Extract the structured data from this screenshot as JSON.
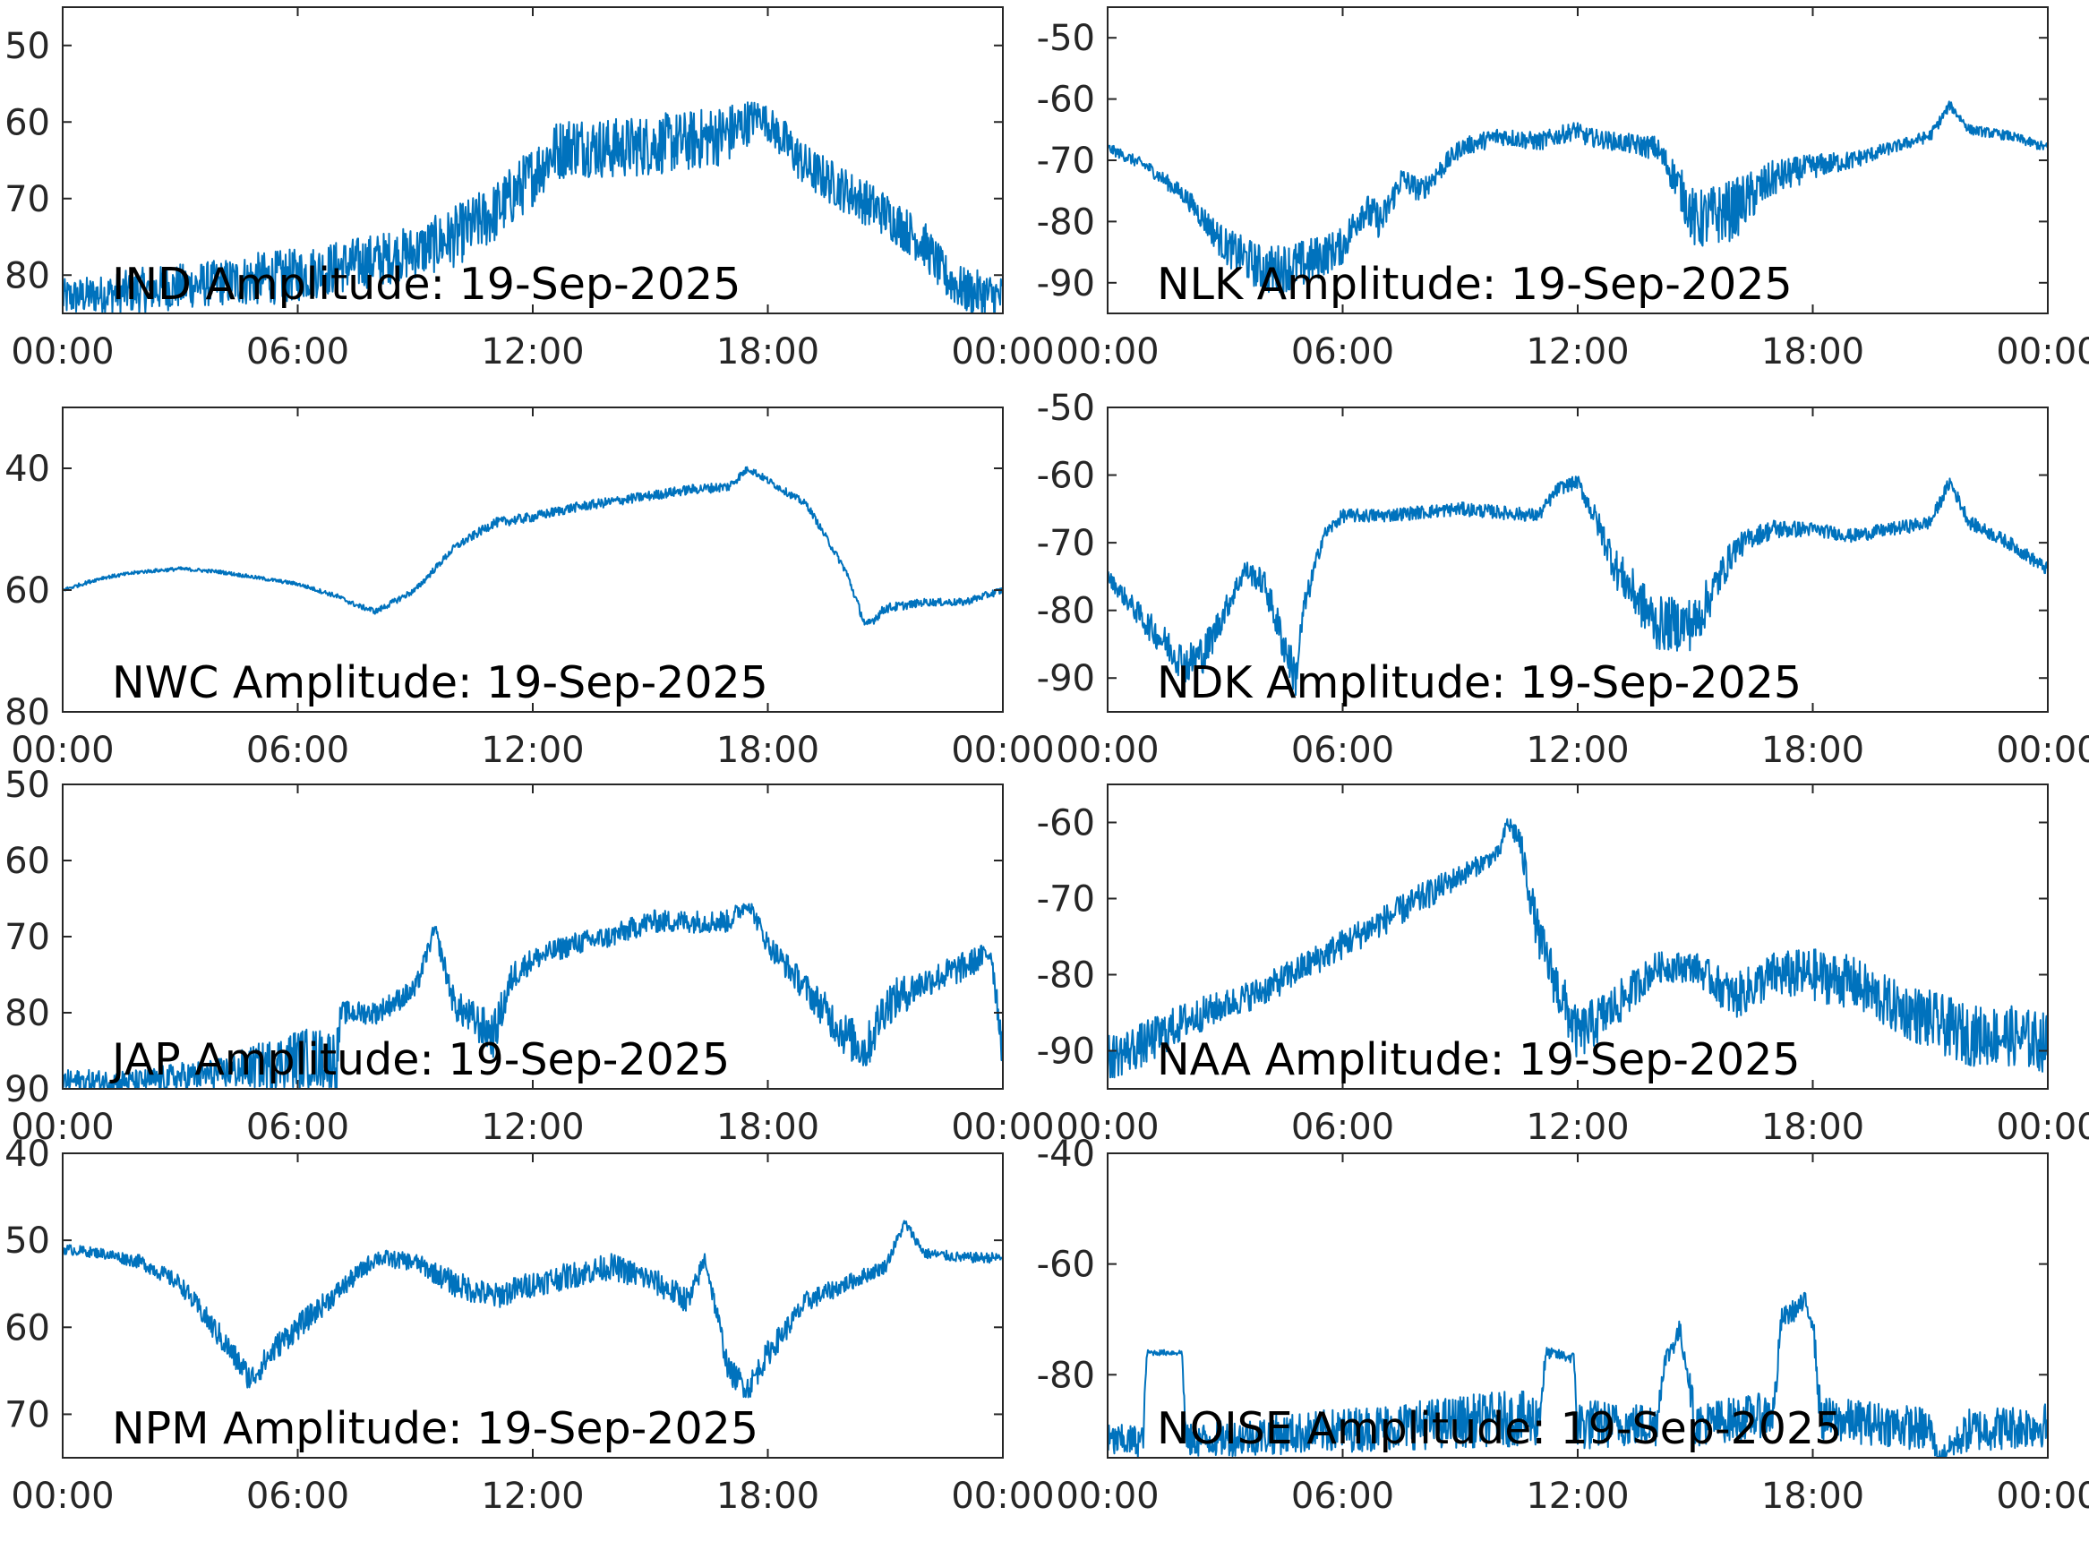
{
  "figure": {
    "line_color": "#0072BD",
    "axis_color": "#262626",
    "background": "#ffffff"
  },
  "chart_data": [
    {
      "type": "line",
      "title": "IND Amplitude: 19-Sep-2025",
      "xlabel": "",
      "ylabel": "",
      "grid": false,
      "xlim": [
        0,
        24
      ],
      "ylim": [
        -85,
        -45
      ],
      "y_reversed_visual": false,
      "xticks": [
        0,
        6,
        12,
        18,
        24
      ],
      "xtick_labels": [
        "00:00",
        "06:00",
        "12:00",
        "18:00",
        "00:00"
      ],
      "yticks": [
        -50,
        -60,
        -70,
        -80
      ],
      "ytick_labels": [
        "50",
        "60",
        "70",
        "80"
      ],
      "series": [
        {
          "x": [
            0,
            1,
            2,
            3,
            4,
            5,
            6,
            7,
            8,
            9,
            10,
            11,
            12,
            12.5,
            13,
            14,
            15,
            16,
            17,
            17.5,
            17.8,
            18.5,
            19,
            20,
            21,
            22,
            22.5,
            23,
            24
          ],
          "y": [
            -83,
            -82.5,
            -82,
            -81.5,
            -81,
            -80.5,
            -80,
            -79,
            -78,
            -77,
            -75,
            -72,
            -67,
            -64,
            -63,
            -63.5,
            -63,
            -62.5,
            -61.5,
            -60,
            -59,
            -63,
            -66,
            -69,
            -72,
            -76,
            -80,
            -82,
            -83
          ],
          "noise": [
            2.5,
            2.5,
            3,
            3,
            3,
            3.5,
            3.5,
            3.5,
            3.5,
            3.5,
            4,
            4,
            4,
            4,
            4,
            4,
            4,
            4,
            4,
            3,
            2,
            3,
            3,
            3,
            3,
            3,
            3,
            3,
            3
          ]
        }
      ]
    },
    {
      "type": "line",
      "title": "NLK Amplitude: 19-Sep-2025",
      "xlabel": "",
      "ylabel": "",
      "grid": false,
      "xlim": [
        0,
        24
      ],
      "ylim": [
        -95,
        -45
      ],
      "xticks": [
        0,
        6,
        12,
        18,
        24
      ],
      "xtick_labels": [
        "00:00",
        "06:00",
        "12:00",
        "18:00",
        "00:00"
      ],
      "yticks": [
        -50,
        -60,
        -70,
        -80,
        -90
      ],
      "ytick_labels": [
        "-50",
        "-60",
        "-70",
        "-80",
        "-90"
      ],
      "series": [
        {
          "x": [
            0,
            1,
            2,
            3,
            4,
            5,
            6,
            6.5,
            7,
            7.5,
            8,
            9,
            10,
            11,
            12,
            12.1,
            13,
            14,
            14.5,
            15,
            16,
            17,
            18,
            19,
            20,
            21,
            21.5,
            22,
            23,
            24
          ],
          "y": [
            -68,
            -71,
            -76,
            -84,
            -88,
            -87,
            -84,
            -78,
            -80,
            -73,
            -75,
            -68,
            -66,
            -67,
            -65,
            -66,
            -67,
            -68,
            -73,
            -80,
            -78,
            -73,
            -71,
            -70,
            -68,
            -66,
            -61,
            -65,
            -66,
            -68
          ],
          "noise": [
            0.8,
            1,
            1.5,
            3,
            4,
            4,
            3,
            3,
            3,
            2,
            2,
            1.5,
            1.5,
            1.5,
            1.5,
            1.5,
            1.5,
            2,
            3,
            5,
            5,
            3,
            2,
            1.5,
            1,
            1,
            0.8,
            0.8,
            0.8,
            0.8
          ]
        }
      ]
    },
    {
      "type": "line",
      "title": "NWC Amplitude: 19-Sep-2025",
      "xlabel": "",
      "ylabel": "",
      "grid": false,
      "xlim": [
        0,
        24
      ],
      "ylim": [
        -80,
        -30
      ],
      "xticks": [
        0,
        6,
        12,
        18,
        24
      ],
      "xtick_labels": [
        "00:00",
        "06:00",
        "12:00",
        "18:00",
        "00:00"
      ],
      "yticks": [
        -40,
        -60,
        -80
      ],
      "ytick_labels": [
        "40",
        "60",
        "80"
      ],
      "series": [
        {
          "x": [
            0,
            1,
            2,
            3,
            4,
            5,
            6,
            7,
            7.5,
            8,
            9,
            10,
            11,
            12,
            13,
            14,
            15,
            16,
            17,
            17.5,
            18,
            19,
            20,
            20.5,
            21,
            22,
            23,
            24
          ],
          "y": [
            -60,
            -58,
            -57,
            -56.5,
            -57,
            -58,
            -59,
            -61,
            -62.5,
            -63.5,
            -60,
            -53,
            -49,
            -48,
            -46.5,
            -45.5,
            -44.5,
            -43.5,
            -43,
            -40,
            -42,
            -46,
            -57,
            -66,
            -63,
            -62,
            -62,
            -60
          ],
          "noise": [
            0.3,
            0.3,
            0.3,
            0.3,
            0.3,
            0.3,
            0.3,
            0.4,
            0.4,
            0.5,
            0.5,
            0.6,
            0.8,
            0.8,
            0.8,
            0.8,
            0.8,
            0.8,
            0.8,
            0.6,
            0.6,
            0.6,
            0.6,
            0.8,
            0.8,
            0.6,
            0.6,
            0.6
          ]
        }
      ]
    },
    {
      "type": "line",
      "title": "NDK Amplitude: 19-Sep-2025",
      "xlabel": "",
      "ylabel": "",
      "grid": false,
      "xlim": [
        0,
        24
      ],
      "ylim": [
        -95,
        -50
      ],
      "xticks": [
        0,
        6,
        12,
        18,
        24
      ],
      "xtick_labels": [
        "00:00",
        "06:00",
        "12:00",
        "18:00",
        "00:00"
      ],
      "yticks": [
        -50,
        -60,
        -70,
        -80,
        -90
      ],
      "ytick_labels": [
        "-50",
        "-60",
        "-70",
        "-80",
        "-90"
      ],
      "series": [
        {
          "x": [
            0,
            1,
            2,
            2.5,
            3,
            3.5,
            4,
            4.5,
            4.8,
            5,
            5.5,
            6,
            7,
            8,
            9,
            10,
            11,
            11.5,
            12,
            12.5,
            13,
            14,
            15,
            16,
            16.5,
            17,
            18,
            19,
            20,
            21,
            21.5,
            22,
            23,
            24
          ],
          "y": [
            -75,
            -82,
            -88,
            -86,
            -80,
            -74,
            -76,
            -85,
            -90,
            -80,
            -69,
            -66,
            -66,
            -65.5,
            -65,
            -65.5,
            -66,
            -62,
            -61,
            -67,
            -74,
            -82,
            -82,
            -71,
            -69,
            -68,
            -68,
            -69,
            -68,
            -67,
            -61,
            -67,
            -70,
            -74
          ],
          "noise": [
            1,
            2,
            3,
            3,
            2,
            1.5,
            2,
            3,
            3,
            2,
            1,
            1,
            1,
            1,
            1,
            1,
            1,
            1,
            1,
            2,
            3,
            4,
            4,
            2,
            1.5,
            1.5,
            1,
            1,
            1,
            1,
            1,
            1,
            1,
            1
          ]
        }
      ]
    },
    {
      "type": "line",
      "title": "JAP Amplitude: 19-Sep-2025",
      "xlabel": "",
      "ylabel": "",
      "grid": false,
      "xlim": [
        0,
        24
      ],
      "ylim": [
        -90,
        -50
      ],
      "xticks": [
        0,
        6,
        12,
        18,
        24
      ],
      "xtick_labels": [
        "00:00",
        "06:00",
        "12:00",
        "18:00",
        "00:00"
      ],
      "yticks": [
        -50,
        -60,
        -70,
        -80,
        -90
      ],
      "ytick_labels": [
        "50",
        "60",
        "70",
        "80",
        "90"
      ],
      "series": [
        {
          "x": [
            0,
            1,
            2,
            3,
            4,
            5,
            6,
            7,
            7.1,
            8,
            9,
            9.5,
            10,
            11,
            11.5,
            12,
            13,
            14,
            15,
            16,
            17,
            17.5,
            18,
            19,
            20,
            20.5,
            21,
            22,
            23,
            23.7,
            24
          ],
          "y": [
            -89,
            -89,
            -89,
            -88.5,
            -88,
            -87,
            -86,
            -86,
            -80,
            -80,
            -77,
            -69,
            -79,
            -83,
            -75,
            -73,
            -71,
            -70,
            -68,
            -68,
            -68,
            -65.5,
            -71,
            -77,
            -83,
            -85,
            -79,
            -76,
            -74,
            -72,
            -85
          ],
          "noise": [
            1.5,
            1.5,
            1.5,
            2,
            2,
            3,
            4,
            4,
            1.5,
            1.5,
            1.5,
            1,
            2,
            3,
            2,
            1.5,
            1.5,
            1.5,
            1.5,
            1.5,
            1.5,
            1,
            1.5,
            2,
            3,
            3,
            3,
            2,
            2,
            1.5,
            3
          ]
        }
      ]
    },
    {
      "type": "line",
      "title": "NAA Amplitude: 19-Sep-2025",
      "xlabel": "",
      "ylabel": "",
      "grid": false,
      "xlim": [
        0,
        24
      ],
      "ylim": [
        -95,
        -55
      ],
      "xticks": [
        0,
        6,
        12,
        18,
        24
      ],
      "xtick_labels": [
        "00:00",
        "06:00",
        "12:00",
        "18:00",
        "00:00"
      ],
      "yticks": [
        -60,
        -70,
        -80,
        -90
      ],
      "ytick_labels": [
        "-60",
        "-70",
        "-80",
        "-90"
      ],
      "series": [
        {
          "x": [
            0,
            1,
            2,
            3,
            4,
            5,
            6,
            7,
            8,
            9,
            10,
            10.2,
            10.5,
            11,
            11.5,
            12,
            13,
            14,
            15,
            16,
            17,
            18,
            19,
            20,
            21,
            22,
            23,
            24
          ],
          "y": [
            -91,
            -89,
            -86,
            -84,
            -82,
            -79,
            -76,
            -73,
            -70,
            -67,
            -64,
            -60,
            -62,
            -75,
            -82,
            -88,
            -84,
            -79,
            -79,
            -83,
            -80,
            -80,
            -81,
            -84,
            -86,
            -88,
            -88,
            -89
          ],
          "noise": [
            3,
            3,
            2.5,
            2,
            2,
            2,
            2,
            2,
            2,
            1.5,
            1,
            1,
            2,
            3,
            3.5,
            3.5,
            3,
            2,
            2,
            3,
            3,
            3.5,
            3.5,
            3.5,
            4,
            4,
            4,
            4
          ]
        }
      ]
    },
    {
      "type": "line",
      "title": "NPM Amplitude: 19-Sep-2025",
      "xlabel": "",
      "ylabel": "",
      "grid": false,
      "xlim": [
        0,
        24
      ],
      "ylim": [
        -75,
        -40
      ],
      "xticks": [
        0,
        6,
        12,
        18,
        24
      ],
      "xtick_labels": [
        "00:00",
        "06:00",
        "12:00",
        "18:00",
        "00:00"
      ],
      "yticks": [
        -40,
        -50,
        -60,
        -70
      ],
      "ytick_labels": [
        "40",
        "50",
        "60",
        "70"
      ],
      "series": [
        {
          "x": [
            0,
            1,
            2,
            3,
            4,
            4.8,
            5.5,
            6,
            7,
            8,
            9,
            10,
            11,
            12,
            13,
            14,
            15,
            16,
            16.4,
            17,
            17.5,
            18,
            19,
            20,
            21,
            21.5,
            22,
            23,
            24
          ],
          "y": [
            -51,
            -51.5,
            -52.5,
            -55,
            -61,
            -66,
            -62,
            -60,
            -56,
            -52,
            -52.5,
            -55,
            -56.5,
            -55,
            -54,
            -53,
            -54.5,
            -57,
            -52,
            -65,
            -67,
            -63,
            -57,
            -55,
            -53,
            -48,
            -51.5,
            -52,
            -52
          ],
          "noise": [
            0.6,
            0.6,
            0.8,
            1,
            1.5,
            1.5,
            1.5,
            1.5,
            1.2,
            1,
            1,
            1.5,
            1.5,
            1.5,
            1.5,
            1.5,
            1.5,
            1.5,
            1,
            1.5,
            1.5,
            1.5,
            1.2,
            1,
            0.8,
            0.6,
            0.6,
            0.6,
            0.6
          ]
        }
      ]
    },
    {
      "type": "line",
      "title": "NOISE Amplitude: 19-Sep-2025",
      "xlabel": "",
      "ylabel": "",
      "grid": false,
      "xlim": [
        0,
        24
      ],
      "ylim": [
        -95,
        -40
      ],
      "xticks": [
        0,
        6,
        12,
        18,
        24
      ],
      "xtick_labels": [
        "00:00",
        "06:00",
        "12:00",
        "18:00",
        "00:00"
      ],
      "yticks": [
        -40,
        -60,
        -80
      ],
      "ytick_labels": [
        "-40",
        "-60",
        "-80"
      ],
      "series": [
        {
          "x": [
            0,
            0.9,
            1,
            1.9,
            2,
            4,
            6,
            8,
            10,
            11,
            11.2,
            11.9,
            12,
            13,
            14,
            14.2,
            14.6,
            14.8,
            15,
            16,
            17,
            17.2,
            17.8,
            18,
            18.2,
            20,
            21,
            21.2,
            22,
            24
          ],
          "y": [
            -92,
            -92,
            -76,
            -76,
            -92,
            -91,
            -90,
            -89,
            -88,
            -88,
            -76,
            -77,
            -89,
            -89,
            -89,
            -78,
            -72,
            -79,
            -89,
            -88,
            -87,
            -70,
            -67,
            -70,
            -88,
            -89,
            -90,
            -95,
            -90,
            -89
          ],
          "noise": [
            3,
            3,
            0.5,
            0.5,
            3,
            3.5,
            4,
            4.5,
            5,
            5,
            1,
            1,
            5,
            4,
            4,
            2,
            2,
            2,
            4,
            4,
            4,
            2,
            2,
            2,
            4,
            4,
            4,
            1,
            4,
            4
          ]
        }
      ]
    }
  ]
}
